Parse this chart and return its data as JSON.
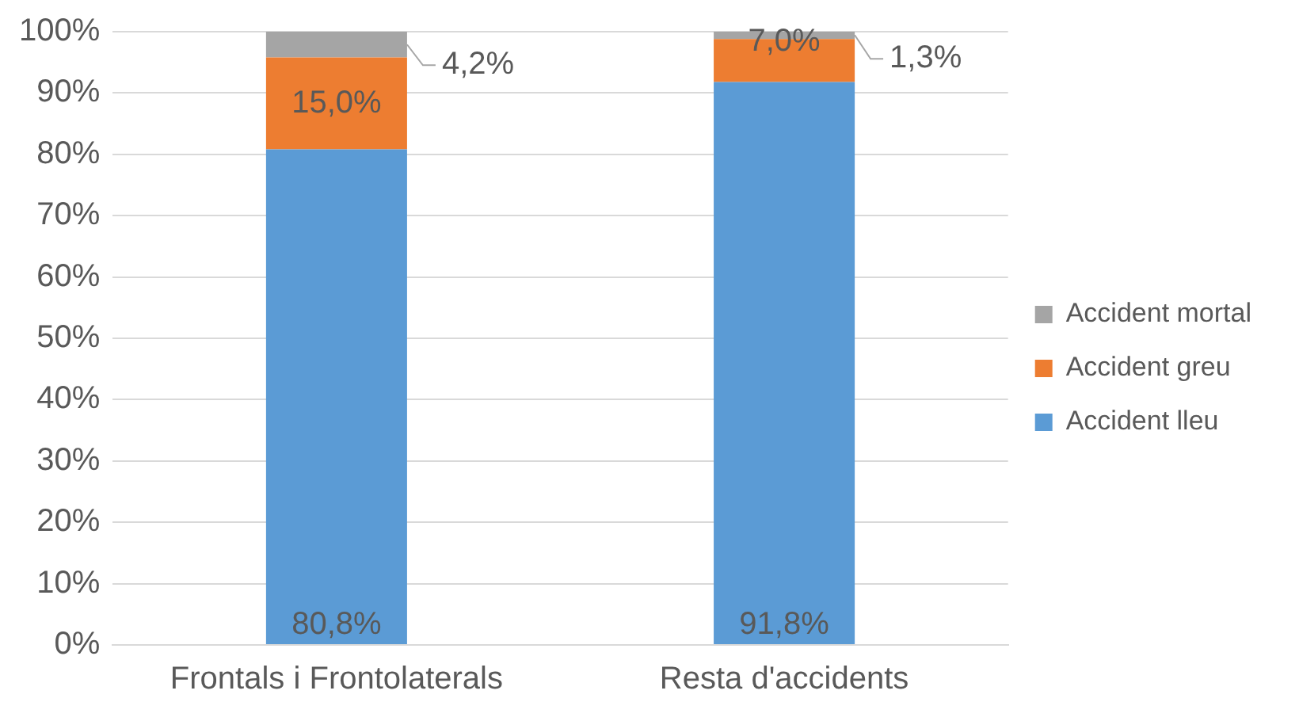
{
  "chart_data": {
    "type": "bar",
    "stacked": true,
    "categories": [
      "Frontals i Frontolaterals",
      "Resta d'accidents"
    ],
    "series": [
      {
        "name": "Accident lleu",
        "color": "#5b9bd5",
        "values": [
          80.8,
          91.8
        ],
        "value_labels": [
          "80,8%",
          "91,8%"
        ]
      },
      {
        "name": "Accident greu",
        "color": "#ed7d31",
        "values": [
          15.0,
          7.0
        ],
        "value_labels": [
          "15,0%",
          "7,0%"
        ]
      },
      {
        "name": "Accident mortal",
        "color": "#a5a5a5",
        "values": [
          4.2,
          1.3
        ],
        "value_labels": [
          "4,2%",
          "1,3%"
        ]
      }
    ],
    "ylim": [
      0,
      100
    ],
    "yticks": [
      {
        "value": 0,
        "label": "0%"
      },
      {
        "value": 10,
        "label": "10%"
      },
      {
        "value": 20,
        "label": "20%"
      },
      {
        "value": 30,
        "label": "30%"
      },
      {
        "value": 40,
        "label": "40%"
      },
      {
        "value": 50,
        "label": "50%"
      },
      {
        "value": 60,
        "label": "60%"
      },
      {
        "value": 70,
        "label": "70%"
      },
      {
        "value": 80,
        "label": "80%"
      },
      {
        "value": 90,
        "label": "90%"
      },
      {
        "value": 100,
        "label": "100%"
      }
    ],
    "grid": "y",
    "legend": "right"
  }
}
